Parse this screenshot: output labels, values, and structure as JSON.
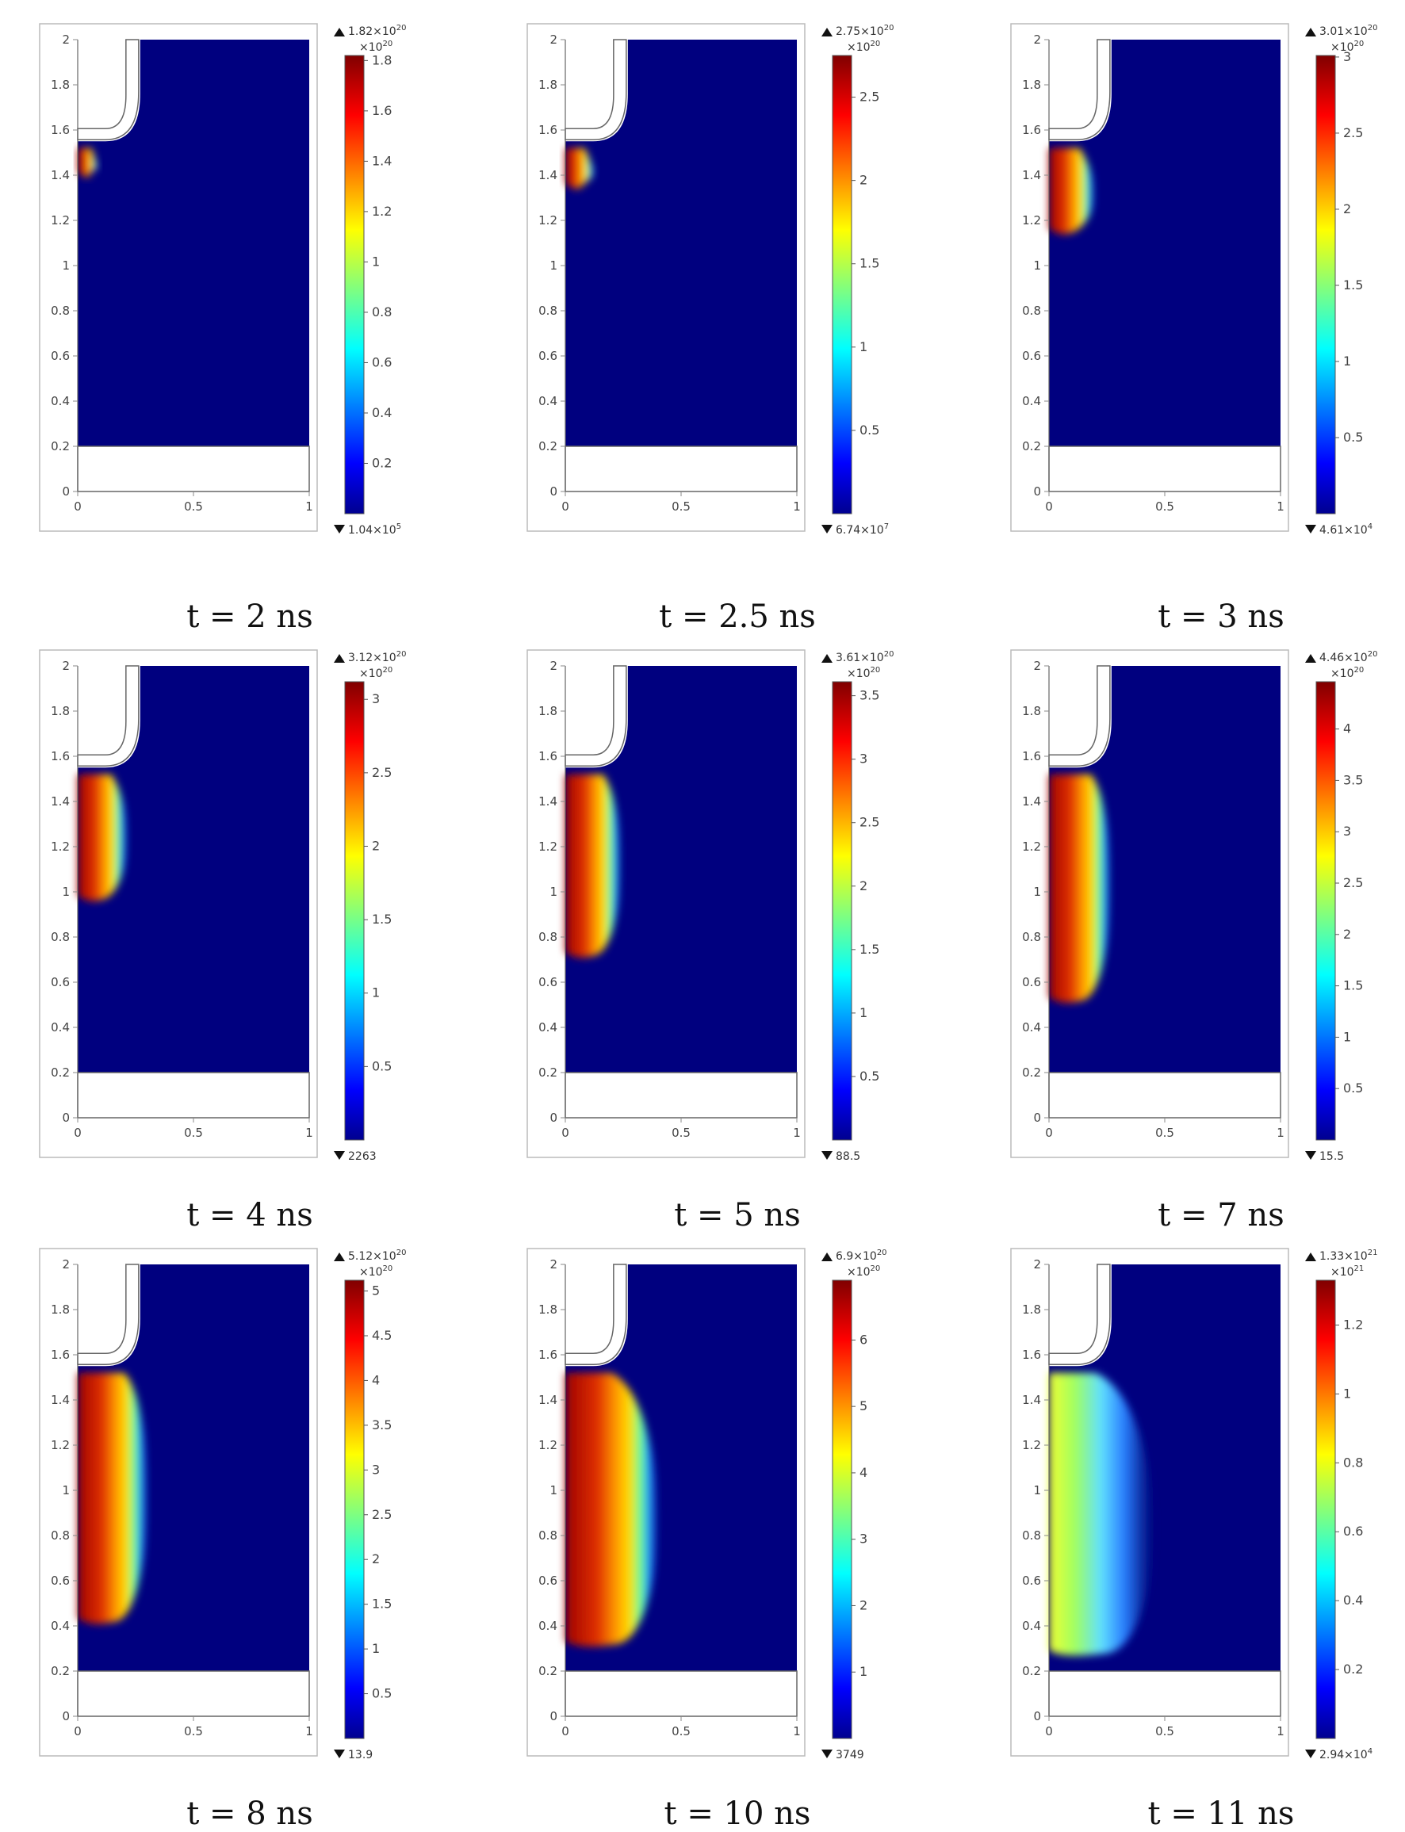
{
  "panels": [
    {
      "caption": "t = 2 ns",
      "colorbar": {
        "max_label": "1.82×10",
        "max_exp": "20",
        "unit_label": "×10",
        "unit_exp": "20",
        "min_label": "1.04×10",
        "min_exp": "5",
        "ticks": [
          {
            "v": 0.2,
            "t": "0.2"
          },
          {
            "v": 0.4,
            "t": "0.4"
          },
          {
            "v": 0.6,
            "t": "0.6"
          },
          {
            "v": 0.8,
            "t": "0.8"
          },
          {
            "v": 1.0,
            "t": "1"
          },
          {
            "v": 1.2,
            "t": "1.2"
          },
          {
            "v": 1.4,
            "t": "1.4"
          },
          {
            "v": 1.6,
            "t": "1.6"
          },
          {
            "v": 1.8,
            "t": "1.8"
          }
        ],
        "max": 1.82
      },
      "plasma": {
        "front": 1.4,
        "right_extent": 0.1,
        "peak": 1.0
      }
    },
    {
      "caption": "t = 2.5 ns",
      "colorbar": {
        "max_label": "2.75×10",
        "max_exp": "20",
        "unit_label": "×10",
        "unit_exp": "20",
        "min_label": "6.74×10",
        "min_exp": "7",
        "ticks": [
          {
            "v": 0.5,
            "t": "0.5"
          },
          {
            "v": 1.0,
            "t": "1"
          },
          {
            "v": 1.5,
            "t": "1.5"
          },
          {
            "v": 2.0,
            "t": "2"
          },
          {
            "v": 2.5,
            "t": "2.5"
          }
        ],
        "max": 2.75
      },
      "plasma": {
        "front": 1.35,
        "right_extent": 0.14,
        "peak": 1.0
      }
    },
    {
      "caption": "t = 3 ns",
      "colorbar": {
        "max_label": "3.01×10",
        "max_exp": "20",
        "unit_label": "×10",
        "unit_exp": "20",
        "min_label": "4.61×10",
        "min_exp": "4",
        "ticks": [
          {
            "v": 0.5,
            "t": "0.5"
          },
          {
            "v": 1.0,
            "t": "1"
          },
          {
            "v": 1.5,
            "t": "1.5"
          },
          {
            "v": 2.0,
            "t": "2"
          },
          {
            "v": 2.5,
            "t": "2.5"
          },
          {
            "v": 3.0,
            "t": "3"
          }
        ],
        "max": 3.01
      },
      "plasma": {
        "front": 1.15,
        "right_extent": 0.22,
        "peak": 1.0
      }
    },
    {
      "caption": "t = 4 ns",
      "colorbar": {
        "max_label": "3.12×10",
        "max_exp": "20",
        "unit_label": "×10",
        "unit_exp": "20",
        "min_label": "2263",
        "min_exp": "",
        "ticks": [
          {
            "v": 0.5,
            "t": "0.5"
          },
          {
            "v": 1.0,
            "t": "1"
          },
          {
            "v": 1.5,
            "t": "1.5"
          },
          {
            "v": 2.0,
            "t": "2"
          },
          {
            "v": 2.5,
            "t": "2.5"
          },
          {
            "v": 3.0,
            "t": "3"
          }
        ],
        "max": 3.12
      },
      "plasma": {
        "front": 0.97,
        "right_extent": 0.24,
        "peak": 1.0
      }
    },
    {
      "caption": "t = 5 ns",
      "colorbar": {
        "max_label": "3.61×10",
        "max_exp": "20",
        "unit_label": "×10",
        "unit_exp": "20",
        "min_label": "88.5",
        "min_exp": "",
        "ticks": [
          {
            "v": 0.5,
            "t": "0.5"
          },
          {
            "v": 1.0,
            "t": "1"
          },
          {
            "v": 1.5,
            "t": "1.5"
          },
          {
            "v": 2.0,
            "t": "2"
          },
          {
            "v": 2.5,
            "t": "2.5"
          },
          {
            "v": 3.0,
            "t": "3"
          },
          {
            "v": 3.5,
            "t": "3.5"
          }
        ],
        "max": 3.61
      },
      "plasma": {
        "front": 0.72,
        "right_extent": 0.27,
        "peak": 1.0
      }
    },
    {
      "caption": "t = 7 ns",
      "colorbar": {
        "max_label": "4.46×10",
        "max_exp": "20",
        "unit_label": "×10",
        "unit_exp": "20",
        "min_label": "15.5",
        "min_exp": "",
        "ticks": [
          {
            "v": 0.5,
            "t": "0.5"
          },
          {
            "v": 1.0,
            "t": "1"
          },
          {
            "v": 1.5,
            "t": "1.5"
          },
          {
            "v": 2.0,
            "t": "2"
          },
          {
            "v": 2.5,
            "t": "2.5"
          },
          {
            "v": 3.0,
            "t": "3"
          },
          {
            "v": 3.5,
            "t": "3.5"
          },
          {
            "v": 4.0,
            "t": "4"
          }
        ],
        "max": 4.46
      },
      "plasma": {
        "front": 0.52,
        "right_extent": 0.3,
        "peak": 1.0
      }
    },
    {
      "caption": "t = 8 ns",
      "colorbar": {
        "max_label": "5.12×10",
        "max_exp": "20",
        "unit_label": "×10",
        "unit_exp": "20",
        "min_label": "13.9",
        "min_exp": "",
        "ticks": [
          {
            "v": 0.5,
            "t": "0.5"
          },
          {
            "v": 1.0,
            "t": "1"
          },
          {
            "v": 1.5,
            "t": "1.5"
          },
          {
            "v": 2.0,
            "t": "2"
          },
          {
            "v": 2.5,
            "t": "2.5"
          },
          {
            "v": 3.0,
            "t": "3"
          },
          {
            "v": 3.5,
            "t": "3.5"
          },
          {
            "v": 4.0,
            "t": "4"
          },
          {
            "v": 4.5,
            "t": "4.5"
          },
          {
            "v": 5.0,
            "t": "5"
          }
        ],
        "max": 5.12
      },
      "plasma": {
        "front": 0.42,
        "right_extent": 0.34,
        "peak": 0.9
      }
    },
    {
      "caption": "t = 10 ns",
      "colorbar": {
        "max_label": "6.9×10",
        "max_exp": "20",
        "unit_label": "×10",
        "unit_exp": "20",
        "min_label": "3749",
        "min_exp": "",
        "ticks": [
          {
            "v": 1,
            "t": "1"
          },
          {
            "v": 2,
            "t": "2"
          },
          {
            "v": 3,
            "t": "3"
          },
          {
            "v": 4,
            "t": "4"
          },
          {
            "v": 5,
            "t": "5"
          },
          {
            "v": 6,
            "t": "6"
          }
        ],
        "max": 6.9
      },
      "plasma": {
        "front": 0.32,
        "right_extent": 0.46,
        "peak": 0.85
      }
    },
    {
      "caption": "t = 11 ns",
      "colorbar": {
        "max_label": "1.33×10",
        "max_exp": "21",
        "unit_label": "×10",
        "unit_exp": "21",
        "min_label": "2.94×10",
        "min_exp": "4",
        "ticks": [
          {
            "v": 0.2,
            "t": "0.2"
          },
          {
            "v": 0.4,
            "t": "0.4"
          },
          {
            "v": 0.6,
            "t": "0.6"
          },
          {
            "v": 0.8,
            "t": "0.8"
          },
          {
            "v": 1.0,
            "t": "1"
          },
          {
            "v": 1.2,
            "t": "1.2"
          }
        ],
        "max": 1.33
      },
      "plasma": {
        "front": 0.28,
        "right_extent": 0.52,
        "peak": 0.55
      }
    }
  ],
  "axes": {
    "y_ticks": [
      "0",
      "0.2",
      "0.4",
      "0.6",
      "0.8",
      "1",
      "1.2",
      "1.4",
      "1.6",
      "1.8",
      "2"
    ],
    "x_ticks": [
      "0",
      "0.5",
      "1"
    ],
    "xlim": [
      0,
      1
    ],
    "ylim": [
      0,
      2
    ]
  },
  "colors": {
    "background_field": "#00007f",
    "geometry_fill": "#ffffff",
    "outline": "#666666"
  }
}
